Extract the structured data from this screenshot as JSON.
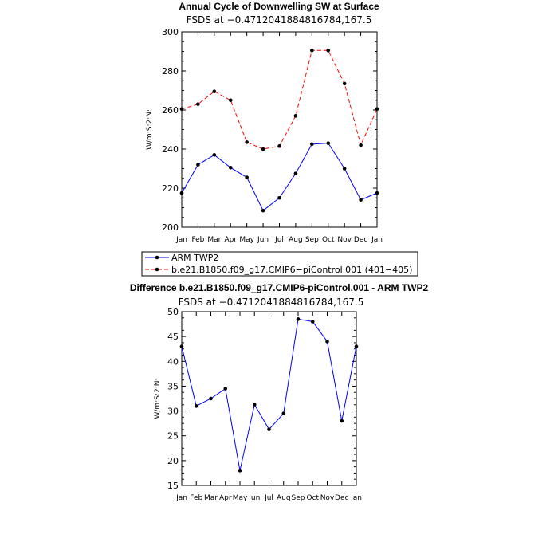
{
  "chart_data": [
    {
      "type": "line",
      "title": "Annual Cycle of Downwelling SW at Surface",
      "subtitle": "FSDS at −0.4712041884816784,167.5",
      "ylabel": "W/m:S:2:N:",
      "categories": [
        "Jan",
        "Feb",
        "Mar",
        "Apr",
        "May",
        "Jun",
        "Jul",
        "Aug",
        "Sep",
        "Oct",
        "Nov",
        "Dec",
        "Jan"
      ],
      "ylim": [
        200,
        300
      ],
      "yticks": [
        "200",
        "220",
        "240",
        "260",
        "280",
        "300"
      ],
      "series": [
        {
          "name": "ARM TWP2",
          "color": "#0000ff",
          "dash": "solid",
          "values": [
            217.5,
            232,
            237,
            230.5,
            225.5,
            208.5,
            215,
            227.5,
            242.5,
            243,
            230,
            214,
            217.5
          ]
        },
        {
          "name": "b.e21.B1850.f09_g17.CMIP6−piControl.001 (401−405)",
          "color": "#ff0000",
          "dash": "dashed",
          "values": [
            260.5,
            263,
            269.5,
            265,
            243.5,
            240,
            241.5,
            257,
            290.5,
            290.5,
            273.5,
            242,
            260.5
          ]
        }
      ],
      "legend": "below"
    },
    {
      "type": "line",
      "title": "Difference b.e21.B1850.f09_g17.CMIP6-piControl.001 - ARM TWP2",
      "subtitle": "FSDS at −0.4712041884816784,167.5",
      "ylabel": "W/m:S:2:N:",
      "categories": [
        "Jan",
        "Feb",
        "Mar",
        "Apr",
        "May",
        "Jun",
        "Jul",
        "Aug",
        "Sep",
        "Oct",
        "Nov",
        "Dec",
        "Jan"
      ],
      "ylim": [
        15,
        50
      ],
      "yticks": [
        "15",
        "20",
        "25",
        "30",
        "35",
        "40",
        "45",
        "50"
      ],
      "series": [
        {
          "color": "#0000ff",
          "dash": "solid",
          "values": [
            43,
            31,
            32.5,
            34.5,
            18,
            31.3,
            26.3,
            29.5,
            48.5,
            48,
            44,
            28,
            43
          ]
        }
      ]
    }
  ]
}
